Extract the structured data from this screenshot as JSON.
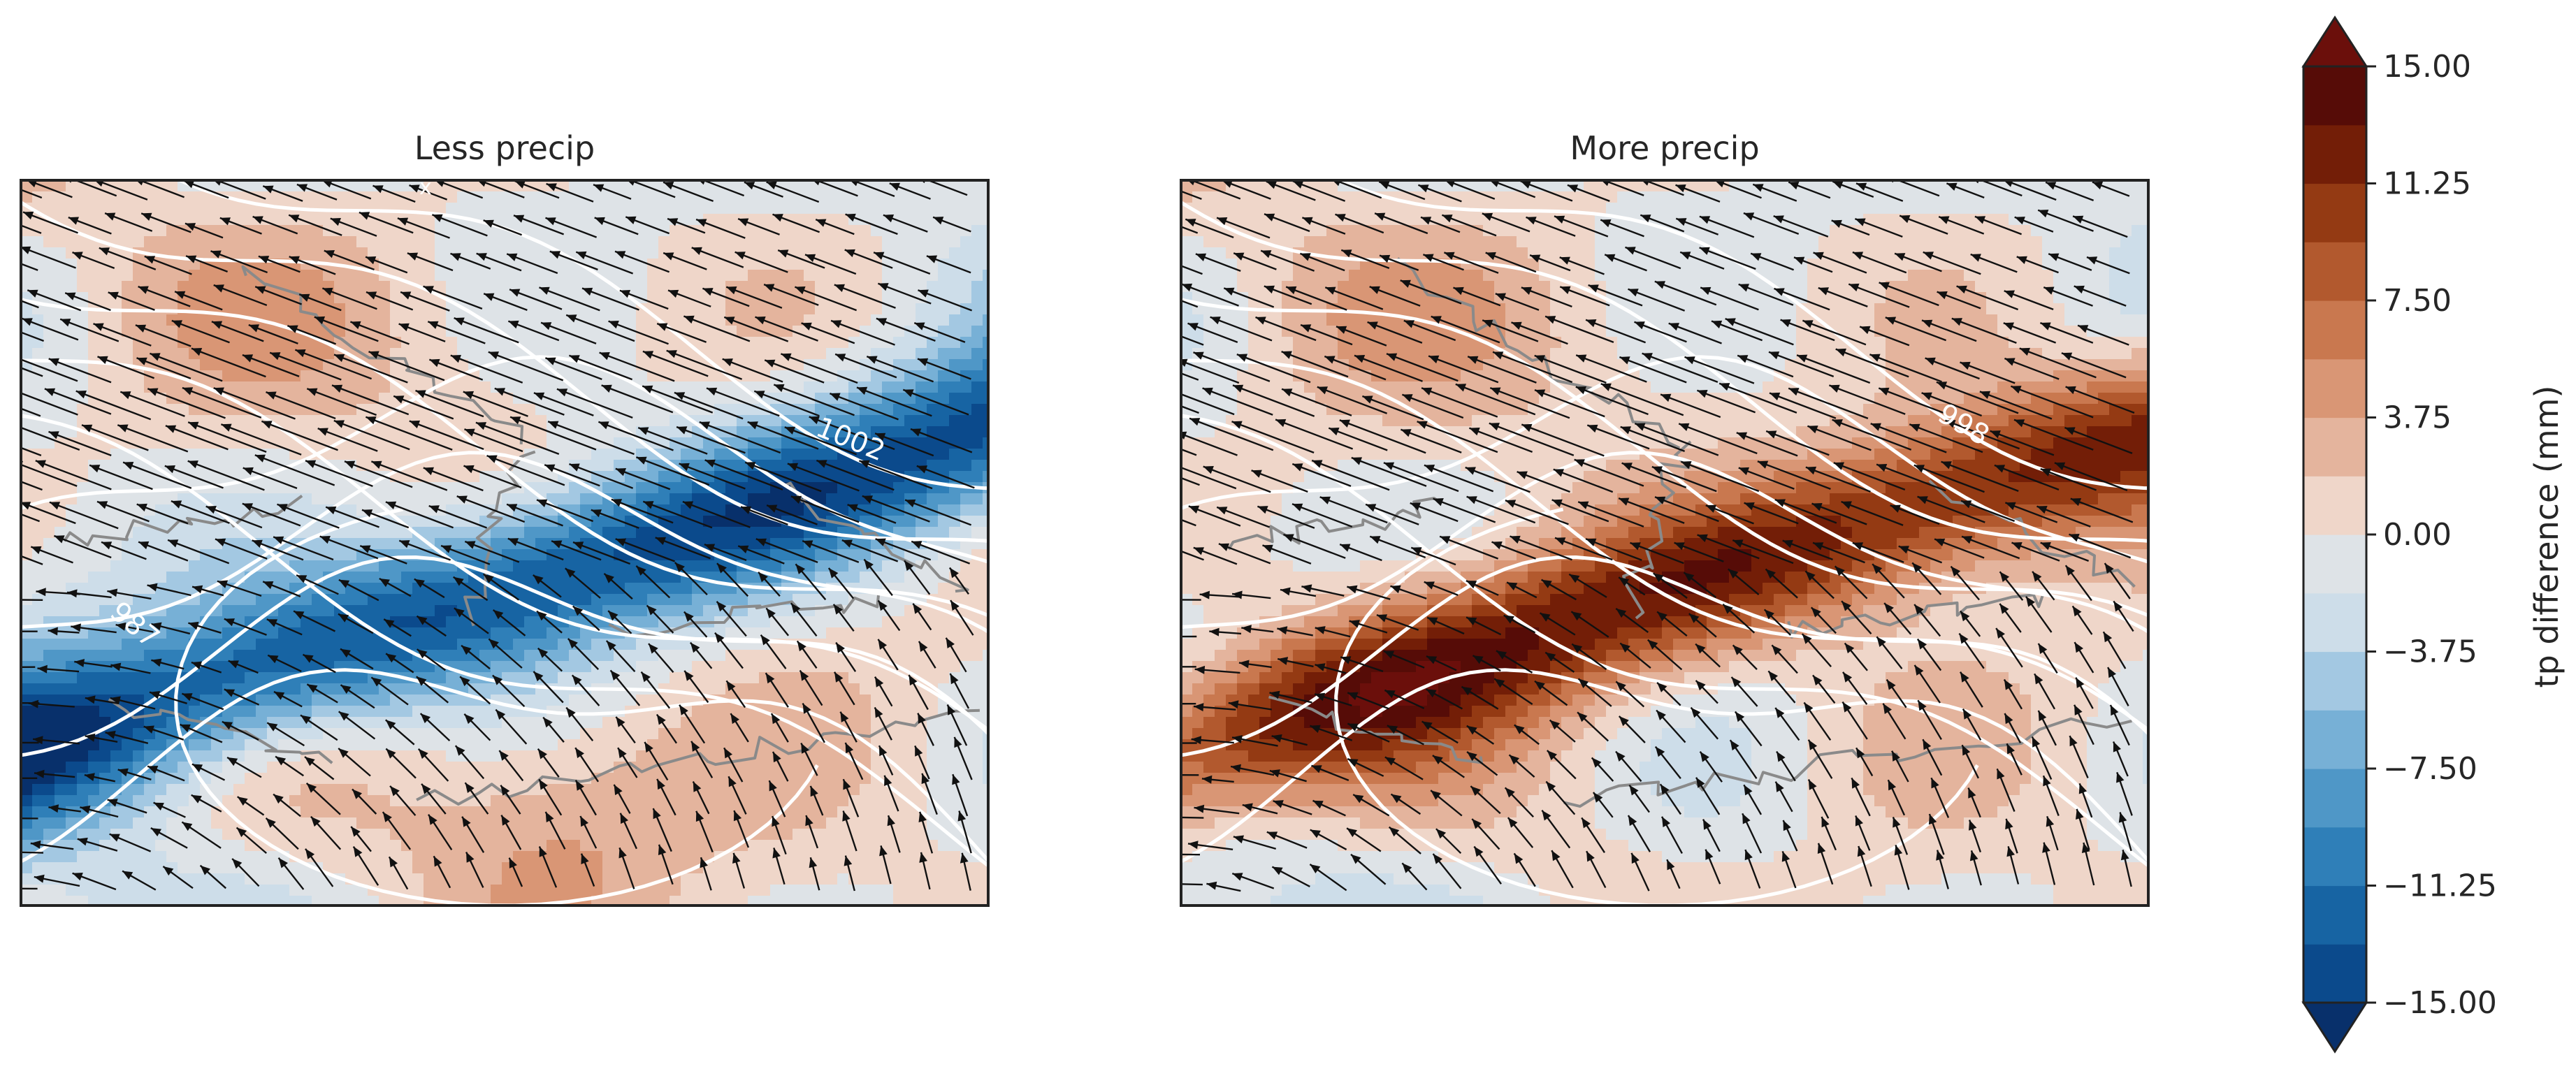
{
  "panels": [
    {
      "title": "Less precip",
      "sign": -1,
      "contour_label": "1002",
      "contour_label_2": "987",
      "top_label": "x"
    },
    {
      "title": "More precip",
      "sign": 1,
      "contour_label": "998"
    }
  ],
  "colorbar": {
    "label": "tp difference (mm)",
    "min": -15,
    "max": 15,
    "n_levels": 16,
    "ticks": [
      "15.00",
      "11.25",
      "7.50",
      "3.75",
      "0.00",
      "−3.75",
      "−7.50",
      "−11.25",
      "−15.00"
    ],
    "tick_values": [
      15,
      11.25,
      7.5,
      3.75,
      0,
      -3.75,
      -7.5,
      -11.25,
      -15
    ],
    "colors": [
      "#08306b",
      "#0b4a8c",
      "#1764a3",
      "#2f7fb8",
      "#4f97c7",
      "#77b0d6",
      "#a3c8e2",
      "#cddde9",
      "#dee3e7",
      "#efd6c9",
      "#e4b49d",
      "#d99675",
      "#c9784f",
      "#b2592e",
      "#943a13",
      "#731e07",
      "#560c07",
      "#6b0f0b"
    ],
    "extend": "both"
  },
  "layers": {
    "filled_contours": "total precipitation difference",
    "contour_lines": "white isobars",
    "coastlines": "grey",
    "vectors": "black arrows"
  }
}
